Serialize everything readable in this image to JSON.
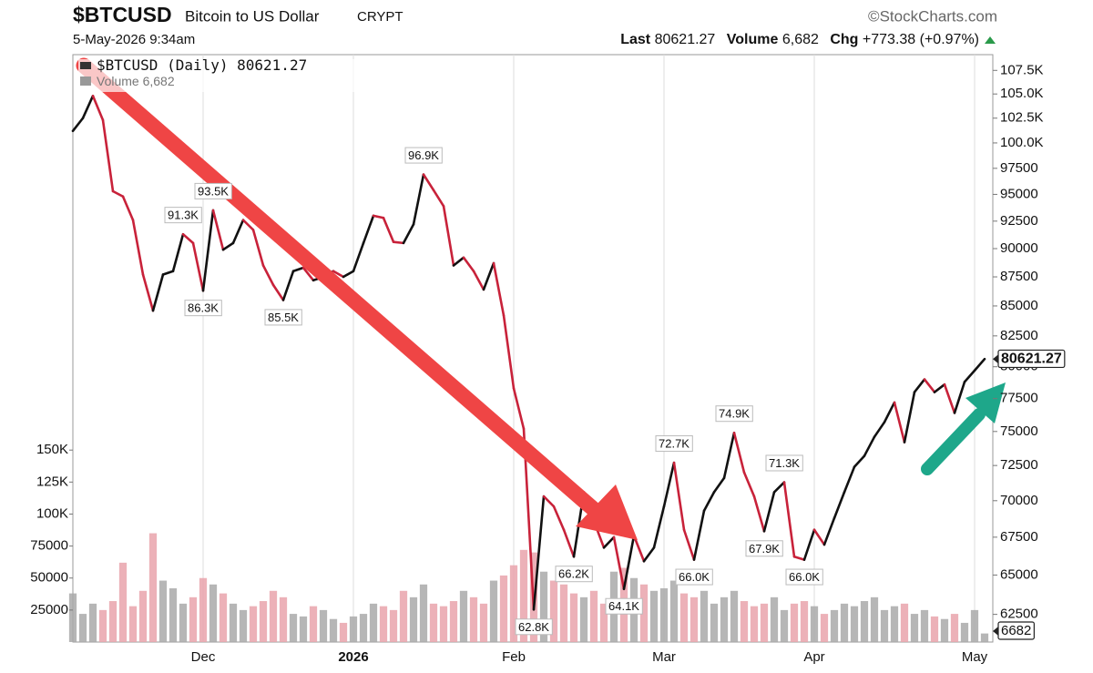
{
  "chart_data": {
    "type": "line",
    "symbol": "$BTCUSD",
    "title": "Bitcoin to US Dollar",
    "exchange": "CRYPT",
    "source": "©StockCharts.com",
    "timestamp": "5-May-2026 9:34am",
    "last_label": "Last",
    "volume_label": "Volume",
    "chg_label": "Chg",
    "chg": "+773.38 (+0.97%)",
    "log_scale": true,
    "grid": "x",
    "categories": [
      null,
      null,
      null,
      null,
      null,
      null,
      null,
      null,
      null,
      null,
      null,
      null,
      null,
      "Dec",
      null,
      null,
      null,
      null,
      null,
      null,
      null,
      null,
      null,
      null,
      null,
      null,
      null,
      null,
      "2026",
      null,
      null,
      null,
      null,
      null,
      null,
      null,
      null,
      null,
      null,
      null,
      null,
      null,
      null,
      null,
      "Feb",
      null,
      null,
      null,
      null,
      null,
      null,
      null,
      null,
      null,
      null,
      null,
      null,
      null,
      null,
      "Mar",
      null,
      null,
      null,
      null,
      null,
      null,
      null,
      null,
      null,
      null,
      null,
      null,
      null,
      null,
      "Apr",
      null,
      null,
      null,
      null,
      null,
      null,
      null,
      null,
      null,
      null,
      null,
      null,
      null,
      null,
      null,
      "May",
      null
    ],
    "series": [
      {
        "name": "$BTCUSD (Daily)",
        "up_color": "#111111",
        "down_color": "#c8223a",
        "values": [
          101200,
          102500,
          104800,
          102300,
          95300,
          94800,
          92600,
          87700,
          84600,
          87700,
          88000,
          91300,
          90500,
          86300,
          93500,
          89900,
          90500,
          92600,
          91700,
          88500,
          86800,
          85500,
          88000,
          88300,
          87200,
          87500,
          88000,
          87500,
          88000,
          90500,
          93000,
          92800,
          90600,
          90500,
          92200,
          96900,
          95400,
          93900,
          88500,
          89200,
          88000,
          86400,
          88700,
          84200,
          78300,
          75200,
          62800,
          70300,
          69600,
          68000,
          66200,
          70600,
          68600,
          66800,
          67500,
          64100,
          67600,
          65900,
          66800,
          69600,
          72700,
          68000,
          66000,
          69300,
          70600,
          71600,
          74900,
          72000,
          70300,
          67900,
          70600,
          71300,
          66200,
          66000,
          68000,
          67000,
          68800,
          70600,
          72400,
          73200,
          74600,
          75700,
          77200,
          74200,
          78000,
          79000,
          78000,
          78600,
          76400,
          78800,
          79700,
          80621.27
        ],
        "value_labels": [
          null,
          null,
          null,
          null,
          null,
          null,
          null,
          null,
          null,
          null,
          null,
          "91.3K",
          null,
          "86.3K",
          "93.5K",
          null,
          null,
          null,
          null,
          null,
          null,
          "85.5K",
          null,
          null,
          null,
          null,
          null,
          null,
          null,
          null,
          null,
          null,
          null,
          null,
          null,
          "96.9K",
          null,
          null,
          null,
          null,
          null,
          null,
          null,
          null,
          null,
          null,
          "62.8K",
          null,
          null,
          null,
          "66.2K",
          null,
          null,
          null,
          null,
          "64.1K",
          null,
          null,
          null,
          null,
          "72.7K",
          null,
          "66.0K",
          null,
          null,
          null,
          "74.9K",
          null,
          null,
          "67.9K",
          null,
          "71.3K",
          null,
          "66.0K",
          null,
          null,
          null,
          null,
          null,
          null,
          null,
          null,
          null,
          null,
          null,
          null,
          null,
          null,
          null,
          null,
          null,
          null
        ]
      },
      {
        "name": "Volume",
        "axis": "y2",
        "up_color": "#a9a9a9",
        "down_color": "#e9a3ab",
        "values": [
          38000,
          22000,
          30000,
          25000,
          32000,
          62000,
          28000,
          40000,
          85000,
          48000,
          42000,
          30000,
          35000,
          50000,
          45000,
          38000,
          30000,
          25000,
          28000,
          32000,
          40000,
          35000,
          22000,
          20000,
          28000,
          25000,
          18000,
          15000,
          20000,
          22000,
          30000,
          28000,
          25000,
          40000,
          35000,
          45000,
          30000,
          28000,
          32000,
          40000,
          35000,
          30000,
          48000,
          52000,
          60000,
          72000,
          70000,
          55000,
          48000,
          45000,
          38000,
          35000,
          40000,
          30000,
          55000,
          58000,
          50000,
          45000,
          40000,
          42000,
          48000,
          38000,
          35000,
          40000,
          30000,
          35000,
          40000,
          32000,
          28000,
          30000,
          35000,
          25000,
          30000,
          32000,
          28000,
          22000,
          25000,
          30000,
          28000,
          32000,
          35000,
          25000,
          28000,
          30000,
          22000,
          25000,
          20000,
          18000,
          22000,
          15000,
          25000,
          6682
        ],
        "value_labels": [
          null,
          null,
          null,
          null,
          null,
          null,
          null,
          null,
          null,
          null,
          null,
          null,
          null,
          null,
          null,
          null,
          null,
          null,
          null,
          null,
          null,
          null,
          null,
          null,
          null,
          null,
          null,
          null,
          null,
          null,
          null,
          null,
          null,
          null,
          null,
          null,
          null,
          null,
          null,
          null,
          null,
          null,
          null,
          null,
          null,
          null,
          null,
          null,
          null,
          null,
          null,
          null,
          null,
          null,
          null,
          null,
          null,
          null,
          null,
          null,
          null,
          null,
          null,
          null,
          null,
          null,
          null,
          null,
          null,
          null,
          null,
          null,
          null,
          null,
          null,
          null,
          null,
          null,
          null,
          null,
          null,
          null,
          null,
          null,
          null,
          null,
          null,
          null,
          null,
          null,
          null,
          "6,682"
        ]
      }
    ],
    "ylim": [
      60800,
      109200
    ],
    "yticks": [
      {
        "value": 107500,
        "label": "107.5K"
      },
      {
        "value": 105000,
        "label": "105.0K"
      },
      {
        "value": 102500,
        "label": "102.5K"
      },
      {
        "value": 100000,
        "label": "100.0K"
      },
      97500,
      95000,
      92500,
      90000,
      87500,
      85000,
      82500,
      80000,
      77500,
      75000,
      72500,
      70000,
      67500,
      65000,
      62500
    ],
    "y2lim": [
      0,
      459000
    ],
    "y2ticks": [
      {
        "value": 150000,
        "label": "150K"
      },
      {
        "value": 125000,
        "label": "125K"
      },
      {
        "value": 100000,
        "label": "100K"
      },
      75000,
      50000,
      25000
    ]
  }
}
